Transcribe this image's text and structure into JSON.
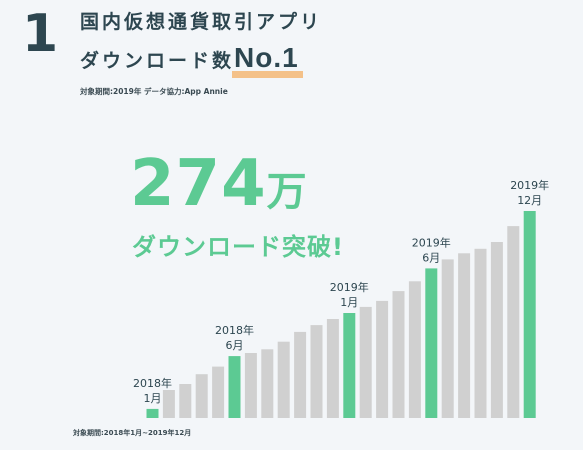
{
  "rank": "1",
  "headline_line1": "国内仮想通貨取引アプリ",
  "headline_line2_prefix": "ダウンロード数",
  "headline_line2_highlight": "No.1",
  "note_top": "対象期間:2019年 データ協力:App Annie",
  "big_number": "274",
  "big_unit": "万",
  "big_caption": "ダウンロード突破!",
  "note_bottom": "対象期間:2018年1月~2019年12月",
  "colors": {
    "accent": "#5cca93",
    "bar": "#d0d0d0",
    "text": "#2d4650",
    "underline": "#f4c189"
  },
  "chart_data": {
    "type": "bar",
    "title": "",
    "xlabel": "",
    "ylabel": "",
    "ylim": [
      0,
      274
    ],
    "categories": [
      "2018-01",
      "2018-02",
      "2018-03",
      "2018-04",
      "2018-05",
      "2018-06",
      "2018-07",
      "2018-08",
      "2018-09",
      "2018-10",
      "2018-11",
      "2018-12",
      "2019-01",
      "2019-02",
      "2019-03",
      "2019-04",
      "2019-05",
      "2019-06",
      "2019-07",
      "2019-08",
      "2019-09",
      "2019-10",
      "2019-11",
      "2019-12"
    ],
    "values": [
      12,
      37,
      45,
      58,
      68,
      82,
      86,
      91,
      101,
      114,
      123,
      131,
      139,
      147,
      155,
      168,
      181,
      198,
      210,
      218,
      224,
      233,
      254,
      274
    ],
    "highlighted": [
      0,
      5,
      12,
      17,
      23
    ],
    "annotations": [
      {
        "index": 0,
        "line1": "2018年",
        "line2": "1月"
      },
      {
        "index": 5,
        "line1": "2018年",
        "line2": "6月"
      },
      {
        "index": 12,
        "line1": "2019年",
        "line2": "1月"
      },
      {
        "index": 17,
        "line1": "2019年",
        "line2": "6月"
      },
      {
        "index": 23,
        "line1": "2019年",
        "line2": "12月"
      }
    ]
  }
}
